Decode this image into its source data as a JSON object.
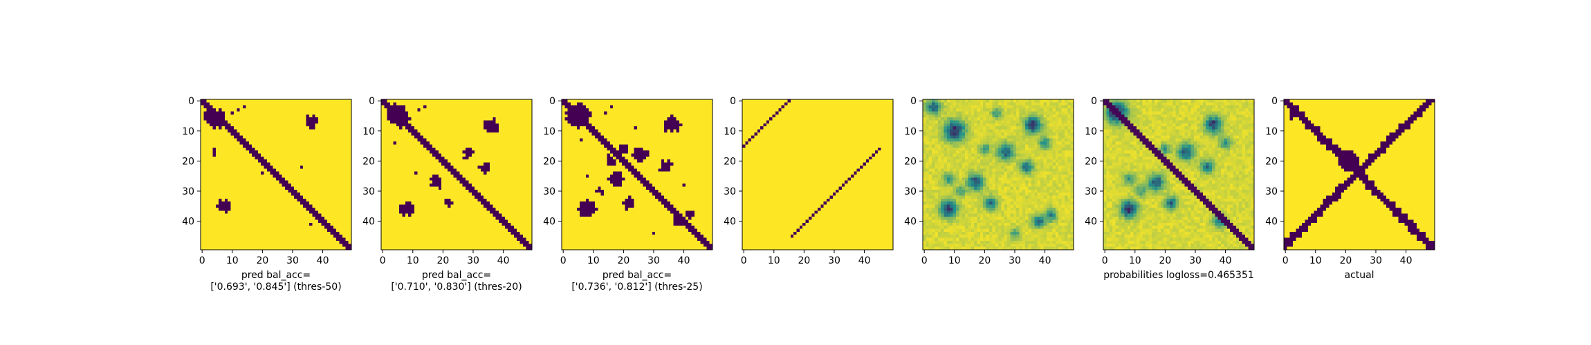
{
  "figure": {
    "colormap": {
      "low": "#440154",
      "mid": "#21918c",
      "high": "#fde725"
    },
    "panels_count_note": ""
  },
  "chart_data": [
    {
      "type": "heatmap",
      "matrix_size": 50,
      "xticks": [
        0,
        10,
        20,
        30,
        40
      ],
      "yticks": [
        0,
        10,
        20,
        30,
        40
      ],
      "xlabel_lines": [
        "pred bal_acc=",
        "['0.693', '0.845'] (thres-50)"
      ],
      "kind": "binary",
      "diag_width": 2,
      "blobs": [
        [
          6,
          5,
          3.2
        ],
        [
          5,
          3,
          2.0
        ],
        [
          7,
          36,
          2.0
        ],
        [
          35,
          7,
          2.2
        ],
        [
          17,
          4,
          1.0
        ]
      ],
      "specks": [
        [
          22,
          33
        ],
        [
          26,
          27
        ],
        [
          24,
          20
        ],
        [
          41,
          36
        ],
        [
          2,
          14
        ],
        [
          3,
          12
        ],
        [
          4,
          10
        ]
      ]
    },
    {
      "type": "heatmap",
      "matrix_size": 50,
      "xticks": [
        0,
        10,
        20,
        30,
        40
      ],
      "yticks": [
        0,
        10,
        20,
        30,
        40
      ],
      "xlabel_lines": [
        "pred bal_acc=",
        "['0.710', '0.830'] (thres-20)"
      ],
      "kind": "binary",
      "diag_width": 2,
      "blobs": [
        [
          5,
          5,
          3.6
        ],
        [
          8,
          36,
          2.5
        ],
        [
          36,
          8,
          2.5
        ],
        [
          17,
          28,
          1.8
        ],
        [
          27,
          18,
          1.8
        ],
        [
          22,
          34,
          1.5
        ],
        [
          34,
          22,
          1.3
        ]
      ],
      "specks": [
        [
          2,
          14
        ],
        [
          3,
          12
        ],
        [
          14,
          4
        ],
        [
          24,
          11
        ]
      ]
    },
    {
      "type": "heatmap",
      "matrix_size": 50,
      "xticks": [
        0,
        10,
        20,
        30,
        40
      ],
      "yticks": [
        0,
        10,
        20,
        30,
        40
      ],
      "xlabel_lines": [
        "pred bal_acc=",
        "['0.736', '0.812'] (thres-25)"
      ],
      "kind": "binary",
      "diag_width": 2,
      "blobs": [
        [
          5,
          5,
          4.0
        ],
        [
          8,
          36,
          2.6
        ],
        [
          36,
          8,
          2.8
        ],
        [
          18,
          26,
          2.6
        ],
        [
          26,
          18,
          2.6
        ],
        [
          22,
          34,
          2.0
        ],
        [
          34,
          22,
          2.0
        ],
        [
          16,
          20,
          1.8
        ],
        [
          20,
          16,
          1.8
        ],
        [
          40,
          38,
          1.6
        ],
        [
          38,
          42,
          1.4
        ],
        [
          30,
          12,
          1.4
        ]
      ],
      "specks": [
        [
          2,
          16
        ],
        [
          4,
          14
        ],
        [
          9,
          24
        ],
        [
          25,
          8
        ],
        [
          13,
          6
        ],
        [
          44,
          30
        ],
        [
          28,
          40
        ]
      ]
    },
    {
      "type": "heatmap",
      "matrix_size": 50,
      "xticks": [
        0,
        10,
        20,
        30,
        40
      ],
      "yticks": [
        0,
        10,
        20,
        30,
        40
      ],
      "xlabel_lines": [],
      "kind": "offdiag",
      "lines": [
        [
          [
            0,
            15
          ],
          [
            15,
            0
          ]
        ],
        [
          [
            45,
            16
          ],
          [
            16,
            45
          ]
        ]
      ],
      "gaps": [
        [
          26,
          37
        ],
        [
          33,
          30
        ],
        [
          40,
          22
        ],
        [
          28,
          35
        ]
      ]
    },
    {
      "type": "heatmap",
      "matrix_size": 50,
      "xticks": [
        0,
        10,
        20,
        30,
        40
      ],
      "yticks": [
        0,
        10,
        20,
        30,
        40
      ],
      "xlabel_lines": [],
      "kind": "continuous",
      "diagonal": false,
      "blobs": [
        [
          10,
          10,
          3.5,
          0.75
        ],
        [
          2,
          3,
          2.5,
          0.55
        ],
        [
          8,
          36,
          2.8,
          0.7
        ],
        [
          36,
          8,
          2.8,
          0.75
        ],
        [
          17,
          27,
          2.8,
          0.6
        ],
        [
          27,
          17,
          2.8,
          0.6
        ],
        [
          22,
          34,
          2.2,
          0.55
        ],
        [
          34,
          22,
          2.2,
          0.55
        ],
        [
          40,
          38,
          2.2,
          0.5
        ],
        [
          38,
          42,
          2.0,
          0.45
        ],
        [
          26,
          8,
          2.0,
          0.4
        ],
        [
          14,
          40,
          2.0,
          0.4
        ],
        [
          30,
          12,
          1.8,
          0.35
        ],
        [
          4,
          24,
          1.8,
          0.35
        ],
        [
          16,
          20,
          1.8,
          0.4
        ],
        [
          44,
          30,
          1.8,
          0.35
        ]
      ]
    },
    {
      "type": "heatmap",
      "matrix_size": 50,
      "xticks": [
        0,
        10,
        20,
        30,
        40
      ],
      "yticks": [
        0,
        10,
        20,
        30,
        40
      ],
      "xlabel_lines": [
        "probabilities logloss=0.465351"
      ],
      "kind": "continuous",
      "diagonal": true,
      "blobs": [
        [
          4,
          4,
          3.5,
          0.8
        ],
        [
          8,
          36,
          2.8,
          0.7
        ],
        [
          36,
          8,
          2.8,
          0.75
        ],
        [
          17,
          27,
          2.8,
          0.6
        ],
        [
          27,
          17,
          2.8,
          0.6
        ],
        [
          22,
          34,
          2.2,
          0.55
        ],
        [
          34,
          22,
          2.2,
          0.55
        ],
        [
          40,
          38,
          2.2,
          0.5
        ],
        [
          26,
          8,
          2.0,
          0.4
        ],
        [
          14,
          40,
          2.0,
          0.4
        ],
        [
          30,
          12,
          1.8,
          0.35
        ],
        [
          16,
          20,
          1.8,
          0.4
        ]
      ]
    },
    {
      "type": "heatmap",
      "matrix_size": 50,
      "xticks": [
        0,
        10,
        20,
        30,
        40
      ],
      "yticks": [
        0,
        10,
        20,
        30,
        40
      ],
      "xlabel_lines": [
        "actual"
      ],
      "kind": "actual",
      "center": [
        20,
        21,
        3.2
      ]
    }
  ]
}
